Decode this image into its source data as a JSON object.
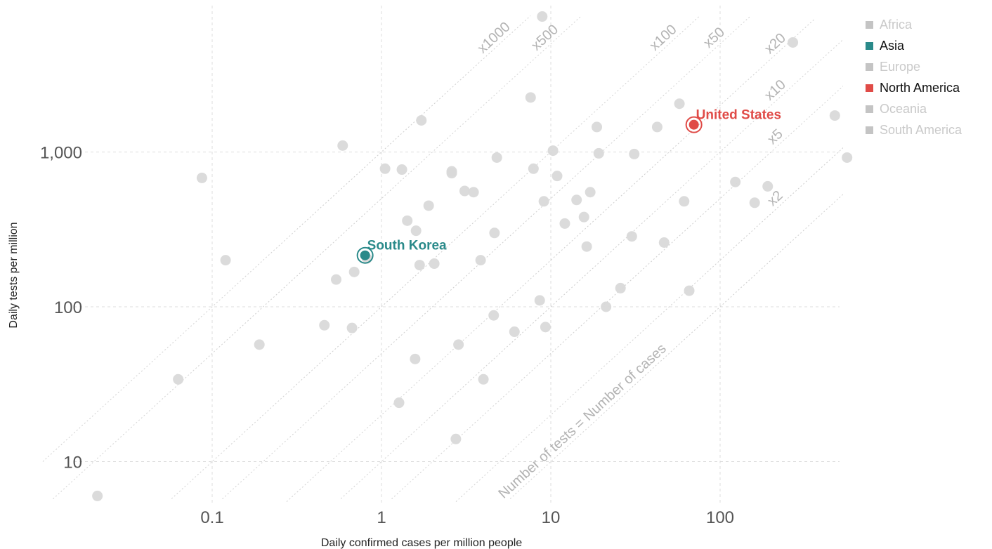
{
  "chart_data": {
    "type": "scatter",
    "xlabel": "Daily confirmed cases per million people",
    "ylabel": "Daily tests per million",
    "x_scale": "log",
    "y_scale": "log",
    "xlim": [
      0.02,
      600
    ],
    "ylim": [
      5,
      8000
    ],
    "x_ticks": [
      {
        "value": 0.1,
        "label": "0.1"
      },
      {
        "value": 1,
        "label": "1"
      },
      {
        "value": 10,
        "label": "10"
      },
      {
        "value": 100,
        "label": "100"
      }
    ],
    "y_ticks": [
      {
        "value": 10,
        "label": "10"
      },
      {
        "value": 100,
        "label": "100"
      },
      {
        "value": 1000,
        "label": "1,000"
      }
    ],
    "grid": true,
    "legend_position": "top-right",
    "legend": [
      {
        "name": "Africa",
        "color": "#c4c4c4",
        "active": false
      },
      {
        "name": "Asia",
        "color": "#2a8a8a",
        "active": true
      },
      {
        "name": "Europe",
        "color": "#c4c4c4",
        "active": false
      },
      {
        "name": "North America",
        "color": "#e04b47",
        "active": true
      },
      {
        "name": "Oceania",
        "color": "#c4c4c4",
        "active": false
      },
      {
        "name": "South America",
        "color": "#c4c4c4",
        "active": false
      }
    ],
    "reference_lines": [
      {
        "ratio": 1,
        "label": "Number of tests = Number of cases"
      },
      {
        "ratio": 2,
        "label": "x2"
      },
      {
        "ratio": 5,
        "label": "x5"
      },
      {
        "ratio": 10,
        "label": "x10"
      },
      {
        "ratio": 20,
        "label": "x20"
      },
      {
        "ratio": 50,
        "label": "x50"
      },
      {
        "ratio": 100,
        "label": "x100"
      },
      {
        "ratio": 500,
        "label": "x500"
      },
      {
        "ratio": 1000,
        "label": "x1000"
      }
    ],
    "highlighted": [
      {
        "name": "South Korea",
        "x": 0.8,
        "y": 215,
        "color": "#2a8a8a"
      },
      {
        "name": "United States",
        "x": 70,
        "y": 1500,
        "color": "#e04b47"
      }
    ],
    "points": [
      {
        "x": 0.021,
        "y": 6
      },
      {
        "x": 0.063,
        "y": 34
      },
      {
        "x": 0.087,
        "y": 680
      },
      {
        "x": 0.12,
        "y": 200
      },
      {
        "x": 0.19,
        "y": 57
      },
      {
        "x": 0.46,
        "y": 76
      },
      {
        "x": 0.54,
        "y": 150
      },
      {
        "x": 0.59,
        "y": 1100
      },
      {
        "x": 0.67,
        "y": 73
      },
      {
        "x": 0.69,
        "y": 168
      },
      {
        "x": 0.82,
        "y": 205
      },
      {
        "x": 1.05,
        "y": 780
      },
      {
        "x": 1.27,
        "y": 24
      },
      {
        "x": 1.32,
        "y": 770
      },
      {
        "x": 1.42,
        "y": 360
      },
      {
        "x": 1.58,
        "y": 46
      },
      {
        "x": 1.6,
        "y": 310
      },
      {
        "x": 1.68,
        "y": 186
      },
      {
        "x": 1.72,
        "y": 1600
      },
      {
        "x": 1.9,
        "y": 450
      },
      {
        "x": 2.05,
        "y": 190
      },
      {
        "x": 2.6,
        "y": 750
      },
      {
        "x": 2.6,
        "y": 730
      },
      {
        "x": 2.75,
        "y": 14
      },
      {
        "x": 2.85,
        "y": 57
      },
      {
        "x": 3.1,
        "y": 560
      },
      {
        "x": 3.5,
        "y": 550
      },
      {
        "x": 3.85,
        "y": 200
      },
      {
        "x": 4.0,
        "y": 34
      },
      {
        "x": 4.6,
        "y": 88
      },
      {
        "x": 4.65,
        "y": 300
      },
      {
        "x": 4.8,
        "y": 920
      },
      {
        "x": 6.1,
        "y": 69
      },
      {
        "x": 7.6,
        "y": 2250
      },
      {
        "x": 7.9,
        "y": 780
      },
      {
        "x": 8.6,
        "y": 110
      },
      {
        "x": 8.9,
        "y": 7500
      },
      {
        "x": 9.1,
        "y": 480
      },
      {
        "x": 9.3,
        "y": 74
      },
      {
        "x": 10.3,
        "y": 1020
      },
      {
        "x": 10.9,
        "y": 700
      },
      {
        "x": 12.1,
        "y": 345
      },
      {
        "x": 14.2,
        "y": 490
      },
      {
        "x": 15.7,
        "y": 380
      },
      {
        "x": 16.3,
        "y": 245
      },
      {
        "x": 17.1,
        "y": 550
      },
      {
        "x": 18.7,
        "y": 1450
      },
      {
        "x": 19.2,
        "y": 980
      },
      {
        "x": 21.2,
        "y": 100
      },
      {
        "x": 25.8,
        "y": 132
      },
      {
        "x": 30.1,
        "y": 285
      },
      {
        "x": 31.1,
        "y": 970
      },
      {
        "x": 42.5,
        "y": 1450
      },
      {
        "x": 46.7,
        "y": 260
      },
      {
        "x": 57.5,
        "y": 2050
      },
      {
        "x": 61.3,
        "y": 480
      },
      {
        "x": 65.7,
        "y": 127
      },
      {
        "x": 123,
        "y": 640
      },
      {
        "x": 160,
        "y": 470
      },
      {
        "x": 191,
        "y": 600
      },
      {
        "x": 269,
        "y": 5100
      },
      {
        "x": 476,
        "y": 1720
      },
      {
        "x": 562,
        "y": 920
      }
    ]
  }
}
